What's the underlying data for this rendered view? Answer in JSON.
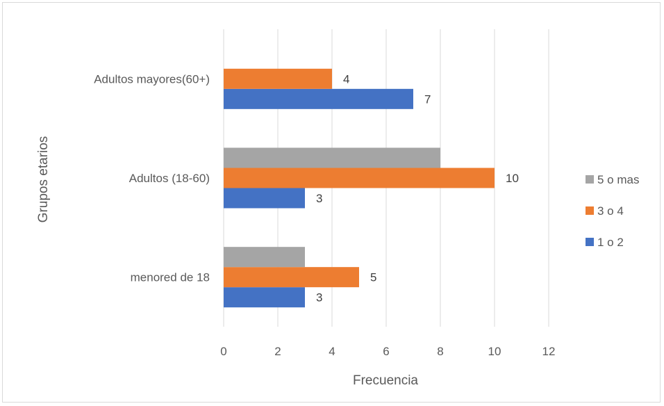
{
  "chart_data": {
    "type": "bar",
    "orientation": "horizontal",
    "categories": [
      "menored de 18",
      "Adultos (18-60)",
      "Adultos mayores(60+)"
    ],
    "series": [
      {
        "name": "1 o 2",
        "values": [
          3,
          3,
          7
        ],
        "color": "#4472c4"
      },
      {
        "name": "3 o 4",
        "values": [
          5,
          10,
          4
        ],
        "color": "#ed7d31"
      },
      {
        "name": "5 o mas",
        "values": [
          3,
          8,
          null
        ],
        "color": "#a5a5a5"
      }
    ],
    "data_labels": [
      {
        "series": "1 o 2",
        "values": [
          3,
          3,
          7
        ],
        "shown": [
          true,
          true,
          true
        ]
      },
      {
        "series": "3 o 4",
        "values": [
          5,
          10,
          4
        ],
        "shown": [
          true,
          true,
          true
        ]
      },
      {
        "series": "5 o mas",
        "values": [
          3,
          8,
          null
        ],
        "shown": [
          false,
          false,
          false
        ]
      }
    ],
    "xlabel": "Frecuencia",
    "ylabel": "Grupos etarios",
    "xlim": [
      0,
      12
    ],
    "xticks": [
      0,
      2,
      4,
      6,
      8,
      10,
      12
    ],
    "grid": "vertical",
    "legend": {
      "position": "right",
      "order": [
        "5 o mas",
        "3 o 4",
        "1 o 2"
      ]
    }
  }
}
